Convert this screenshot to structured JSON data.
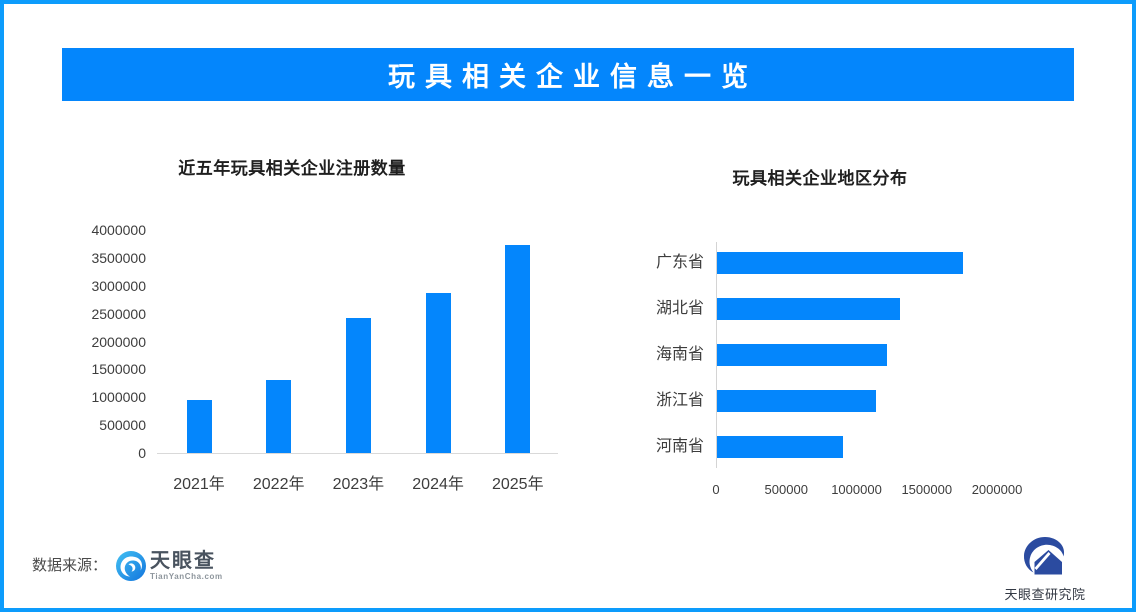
{
  "page": {
    "background": "#ffffff",
    "border_color": "#0d9cfc"
  },
  "header": {
    "title": "玩具相关企业信息一览",
    "bg_color": "#0486fc",
    "text_color": "#ffffff"
  },
  "chart_data": [
    {
      "type": "bar",
      "orientation": "vertical",
      "title": "近五年玩具相关企业注册数量",
      "categories": [
        "2021年",
        "2022年",
        "2023年",
        "2024年",
        "2025年"
      ],
      "values": [
        950000,
        1310000,
        2420000,
        2870000,
        3730000
      ],
      "ylim": [
        0,
        4000000
      ],
      "ytick_step": 500000,
      "bar_color": "#0486fc",
      "axis_line_color": "#d9d9d9",
      "tick_label_color": "#3d3d3d",
      "grid": false,
      "legend": false
    },
    {
      "type": "bar",
      "orientation": "horizontal",
      "title": "玩具相关企业地区分布",
      "categories": [
        "广东省",
        "湖北省",
        "海南省",
        "浙江省",
        "河南省"
      ],
      "values": [
        1750000,
        1300000,
        1210000,
        1130000,
        900000
      ],
      "xlim": [
        0,
        2000000
      ],
      "xticks": [
        0,
        500000,
        1000000,
        1500000,
        2000000
      ],
      "bar_color": "#0486fc",
      "axis_line_color": "#d4d4d4",
      "tick_label_color": "#3d3d3d",
      "grid": false,
      "legend": false
    }
  ],
  "footer": {
    "source_label": "数据来源：",
    "tyc_logo": {
      "icon": "tianyancha-eye-icon",
      "name": "天眼查",
      "domain": "TianYanCha.com"
    },
    "institute": {
      "icon": "research-institute-swoosh-house-icon",
      "name": "天眼查研究院"
    }
  }
}
